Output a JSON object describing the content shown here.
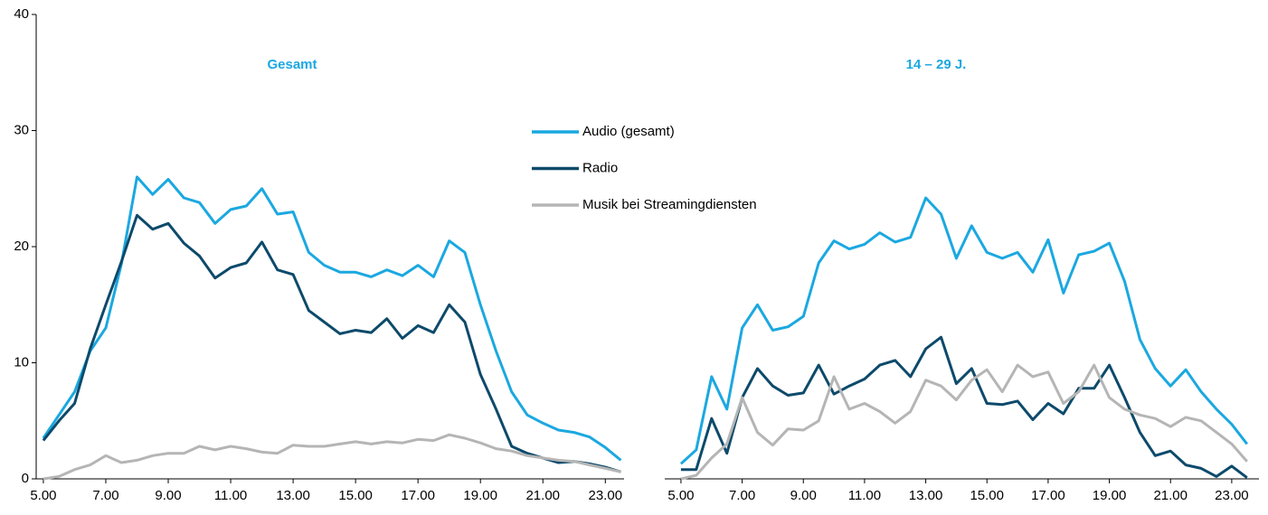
{
  "chart_data": [
    {
      "type": "line",
      "title": "Gesamt",
      "x": [
        5,
        5.5,
        6,
        6.5,
        7,
        7.5,
        8,
        8.5,
        9,
        9.5,
        10,
        10.5,
        11,
        11.5,
        12,
        12.5,
        13,
        13.5,
        14,
        14.5,
        15,
        15.5,
        16,
        16.5,
        17,
        17.5,
        18,
        18.5,
        19,
        19.5,
        20,
        20.5,
        21,
        21.5,
        22,
        22.5,
        23,
        23.5
      ],
      "xlim": [
        4.77,
        23.6
      ],
      "xticks": [
        {
          "value": 5,
          "label": "5.00"
        },
        {
          "value": 7,
          "label": "7.00"
        },
        {
          "value": 9,
          "label": "9.00"
        },
        {
          "value": 11,
          "label": "11.00"
        },
        {
          "value": 13,
          "label": "13.00"
        },
        {
          "value": 15,
          "label": "15.00"
        },
        {
          "value": 17,
          "label": "17.00"
        },
        {
          "value": 19,
          "label": "19.00"
        },
        {
          "value": 21,
          "label": "21.00"
        },
        {
          "value": 23,
          "label": "23.00"
        }
      ],
      "ylim": [
        0,
        40
      ],
      "yticks": [
        0,
        10,
        20,
        30,
        40
      ],
      "series": [
        {
          "name": "Audio (gesamt)",
          "color": "#1ba8e0",
          "values": [
            3.5,
            5.5,
            7.5,
            11,
            13,
            18.5,
            26,
            24.5,
            25.8,
            24.2,
            23.8,
            22,
            23.2,
            23.5,
            25,
            22.8,
            23,
            19.5,
            18.4,
            17.8,
            17.8,
            17.4,
            18,
            17.5,
            18.4,
            17.4,
            20.5,
            19.5,
            15,
            11,
            7.5,
            5.5,
            4.8,
            4.2,
            4,
            3.6,
            2.7,
            1.6
          ]
        },
        {
          "name": "Radio",
          "color": "#0d4a6b",
          "values": [
            3.3,
            5,
            6.5,
            11.2,
            15,
            18.7,
            22.7,
            21.5,
            22,
            20.3,
            19.2,
            17.3,
            18.2,
            18.6,
            20.4,
            18,
            17.6,
            14.5,
            13.5,
            12.5,
            12.8,
            12.6,
            13.8,
            12.1,
            13.2,
            12.6,
            15,
            13.5,
            9,
            6,
            2.8,
            2.2,
            1.8,
            1.4,
            1.5,
            1.3,
            1,
            0.6
          ]
        },
        {
          "name": "Musik bei Streamingdiensten",
          "color": "#b5b5b5",
          "values": [
            0,
            0.2,
            0.8,
            1.2,
            2,
            1.4,
            1.6,
            2,
            2.2,
            2.2,
            2.8,
            2.5,
            2.8,
            2.6,
            2.3,
            2.2,
            2.9,
            2.8,
            2.8,
            3,
            3.2,
            3,
            3.2,
            3.1,
            3.4,
            3.3,
            3.8,
            3.5,
            3.1,
            2.6,
            2.4,
            2,
            1.8,
            1.6,
            1.5,
            1.2,
            0.9,
            0.6
          ]
        }
      ]
    },
    {
      "type": "line",
      "title": "14 – 29 J.",
      "x": [
        5,
        5.5,
        6,
        6.5,
        7,
        7.5,
        8,
        8.5,
        9,
        9.5,
        10,
        10.5,
        11,
        11.5,
        12,
        12.5,
        13,
        13.5,
        14,
        14.5,
        15,
        15.5,
        16,
        16.5,
        17,
        17.5,
        18,
        18.5,
        19,
        19.5,
        20,
        20.5,
        21,
        21.5,
        22,
        22.5,
        23,
        23.5
      ],
      "xlim": [
        4.47,
        23.89
      ],
      "xticks": [
        {
          "value": 5,
          "label": "5.00"
        },
        {
          "value": 7,
          "label": "7.00"
        },
        {
          "value": 9,
          "label": "9.00"
        },
        {
          "value": 11,
          "label": "11.00"
        },
        {
          "value": 13,
          "label": "13.00"
        },
        {
          "value": 15,
          "label": "15.00"
        },
        {
          "value": 17,
          "label": "17.00"
        },
        {
          "value": 19,
          "label": "19.00"
        },
        {
          "value": 21,
          "label": "21.00"
        },
        {
          "value": 23,
          "label": "23.00"
        }
      ],
      "ylim": [
        0,
        40
      ],
      "series": [
        {
          "color": "#1ba8e0",
          "values": [
            1.3,
            2.5,
            8.8,
            6,
            13,
            15,
            12.8,
            13.1,
            14,
            18.6,
            20.5,
            19.8,
            20.2,
            21.2,
            20.4,
            20.8,
            24.2,
            22.8,
            19,
            21.8,
            19.5,
            19,
            19.5,
            17.8,
            20.6,
            16,
            19.3,
            19.6,
            20.3,
            17,
            12,
            9.5,
            8,
            9.4,
            7.5,
            6,
            4.7,
            3
          ]
        },
        {
          "color": "#0d4a6b",
          "values": [
            0.8,
            0.8,
            5.2,
            2.2,
            7,
            9.5,
            8,
            7.2,
            7.4,
            9.8,
            7.3,
            8,
            8.6,
            9.8,
            10.2,
            8.8,
            11.2,
            12.2,
            8.2,
            9.5,
            6.5,
            6.4,
            6.7,
            5.1,
            6.5,
            5.6,
            7.8,
            7.8,
            9.8,
            7,
            4,
            2,
            2.4,
            1.2,
            0.9,
            0.2,
            1.1,
            0.1
          ]
        },
        {
          "color": "#b5b5b5",
          "values": [
            0,
            0.3,
            1.8,
            3,
            7,
            4,
            2.9,
            4.3,
            4.2,
            5,
            8.8,
            6,
            6.5,
            5.8,
            4.8,
            5.8,
            8.5,
            8,
            6.8,
            8.5,
            9.4,
            7.5,
            9.8,
            8.8,
            9.2,
            6.5,
            7.5,
            9.8,
            7,
            6,
            5.5,
            5.2,
            4.5,
            5.3,
            5,
            4,
            3,
            1.5
          ]
        }
      ]
    }
  ]
}
